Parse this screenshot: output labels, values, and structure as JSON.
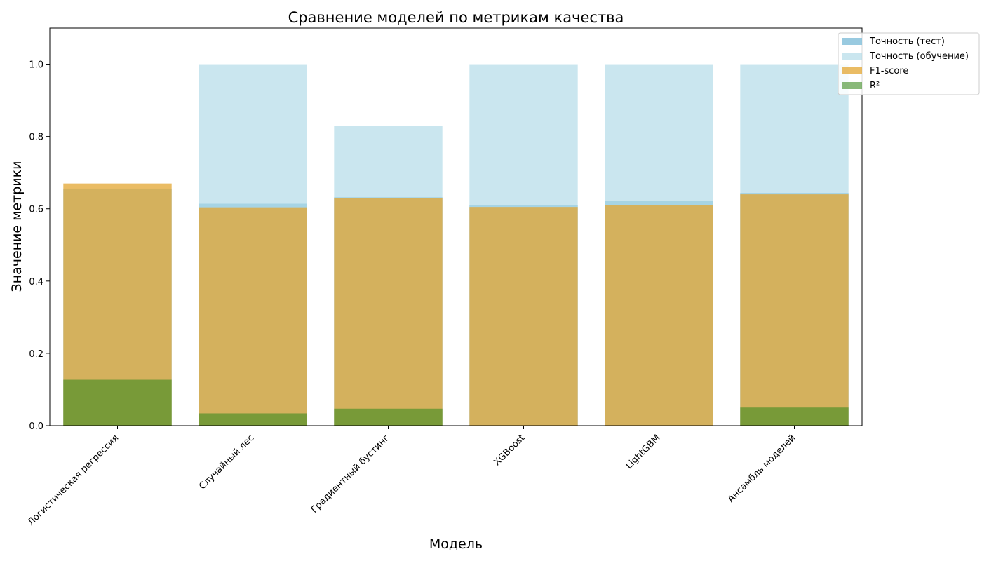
{
  "chart_data": {
    "type": "bar",
    "title": "Сравнение моделей по метрикам качества",
    "xlabel": "Модель",
    "ylabel": "Значение метрики",
    "ylim": [
      0,
      1.1
    ],
    "yticks": [
      0.0,
      0.2,
      0.4,
      0.6,
      0.8,
      1.0
    ],
    "ytick_labels": [
      "0.0",
      "0.2",
      "0.4",
      "0.6",
      "0.8",
      "1.0"
    ],
    "categories": [
      "Логистическая регрессия",
      "Случайный лес",
      "Градиентный бустинг",
      "XGBoost",
      "LightGBM",
      "Ансамбль моделей"
    ],
    "series": [
      {
        "name": "Точность (тест)",
        "color": "#87c1db",
        "opacity": 0.85,
        "values": [
          0.655,
          0.614,
          0.632,
          0.611,
          0.622,
          0.644
        ]
      },
      {
        "name": "Точность (обучение)",
        "color": "#add8e6",
        "opacity": 0.65,
        "values": [
          0.656,
          1.0,
          0.829,
          1.0,
          1.0,
          1.0
        ]
      },
      {
        "name": "F1-score",
        "color": "#e3a530",
        "opacity": 0.75,
        "values": [
          0.67,
          0.604,
          0.629,
          0.605,
          0.611,
          0.64
        ]
      },
      {
        "name": "R²",
        "color": "#3a8a1f",
        "opacity": 0.6,
        "values": [
          0.127,
          0.034,
          0.047,
          0.0,
          0.0,
          0.05
        ]
      }
    ],
    "legend_position": "upper right outside",
    "grid": false
  }
}
